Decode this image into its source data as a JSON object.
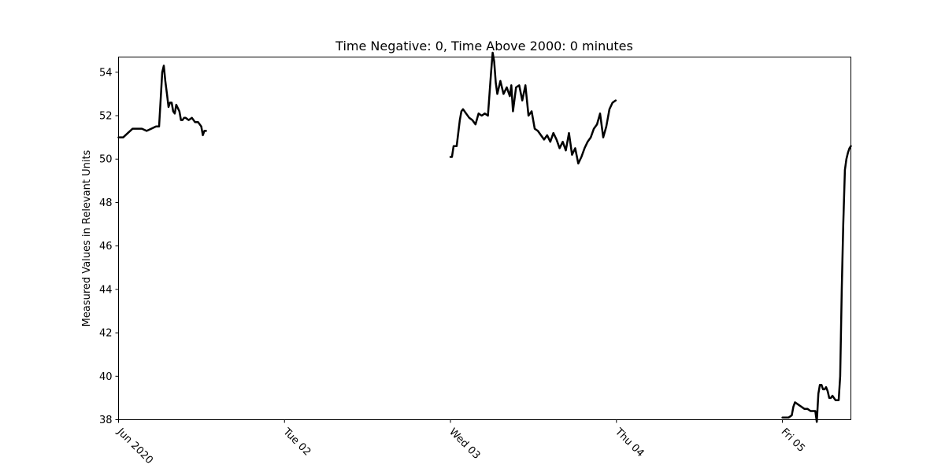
{
  "chart_data": {
    "type": "line",
    "title": "Time Negative: 0, Time Above 2000: 0 minutes",
    "xlabel": "",
    "ylabel": "Measured Values in Relevant Units",
    "ylim": [
      38,
      54.7
    ],
    "xlim": [
      "2020-06-01 00:00",
      "2020-06-05 09:54"
    ],
    "x_ticks": [
      {
        "date": "2020-06-01",
        "label": "Jun 2020"
      },
      {
        "date": "2020-06-02",
        "label": "Tue 02"
      },
      {
        "date": "2020-06-03",
        "label": "Wed 03"
      },
      {
        "date": "2020-06-04",
        "label": "Thu 04"
      },
      {
        "date": "2020-06-05",
        "label": "Fri 05"
      }
    ],
    "y_ticks": [
      38,
      40,
      42,
      44,
      46,
      48,
      50,
      52,
      54
    ],
    "grid": false,
    "line_color": "#000000",
    "segments": [
      {
        "x": [
          "2020-06-01 00:00",
          "2020-06-01 00:41",
          "2020-06-01 01:21",
          "2020-06-01 02:02",
          "2020-06-01 02:42",
          "2020-06-01 03:23",
          "2020-06-01 04:04",
          "2020-06-01 04:44",
          "2020-06-01 05:25",
          "2020-06-01 05:52",
          "2020-06-01 06:06",
          "2020-06-01 06:19",
          "2020-06-01 06:33",
          "2020-06-01 06:46",
          "2020-06-01 07:00",
          "2020-06-01 07:14",
          "2020-06-01 07:27",
          "2020-06-01 07:41",
          "2020-06-01 07:54",
          "2020-06-01 08:08",
          "2020-06-01 08:21",
          "2020-06-01 08:48",
          "2020-06-01 09:02",
          "2020-06-01 09:15",
          "2020-06-01 09:29",
          "2020-06-01 09:42",
          "2020-06-01 10:09",
          "2020-06-01 10:37",
          "2020-06-01 11:04",
          "2020-06-01 11:31",
          "2020-06-01 11:58",
          "2020-06-01 12:12",
          "2020-06-01 12:25",
          "2020-06-01 12:39"
        ],
        "y": [
          51.0,
          51.0,
          51.2,
          51.4,
          51.4,
          51.4,
          51.3,
          51.4,
          51.5,
          51.5,
          52.8,
          54.0,
          54.3,
          53.6,
          53.0,
          52.4,
          52.6,
          52.6,
          52.2,
          52.1,
          52.5,
          52.2,
          51.8,
          51.8,
          51.9,
          51.9,
          51.8,
          51.9,
          51.7,
          51.7,
          51.5,
          51.1,
          51.3,
          51.3
        ]
      },
      {
        "x": [
          "2020-06-03 00:00",
          "2020-06-03 00:13",
          "2020-06-03 00:27",
          "2020-06-03 00:54",
          "2020-06-03 01:21",
          "2020-06-03 01:35",
          "2020-06-03 01:49",
          "2020-06-03 02:16",
          "2020-06-03 02:43",
          "2020-06-03 03:10",
          "2020-06-03 03:37",
          "2020-06-03 04:04",
          "2020-06-03 04:31",
          "2020-06-03 04:58",
          "2020-06-03 05:25",
          "2020-06-03 05:52",
          "2020-06-03 06:06",
          "2020-06-03 06:19",
          "2020-06-03 06:33",
          "2020-06-03 06:46",
          "2020-06-03 07:13",
          "2020-06-03 07:40",
          "2020-06-03 08:08",
          "2020-06-03 08:35",
          "2020-06-03 08:48",
          "2020-06-03 09:02",
          "2020-06-03 09:29",
          "2020-06-03 09:56",
          "2020-06-03 10:23",
          "2020-06-03 10:50",
          "2020-06-03 11:17",
          "2020-06-03 11:44",
          "2020-06-03 12:11",
          "2020-06-03 12:38",
          "2020-06-03 13:05",
          "2020-06-03 13:32",
          "2020-06-03 13:59",
          "2020-06-03 14:26",
          "2020-06-03 14:53",
          "2020-06-03 15:20",
          "2020-06-03 15:47",
          "2020-06-03 16:14",
          "2020-06-03 16:41",
          "2020-06-03 17:08",
          "2020-06-03 17:35",
          "2020-06-03 18:02",
          "2020-06-03 18:29",
          "2020-06-03 18:56",
          "2020-06-03 19:23",
          "2020-06-03 19:50",
          "2020-06-03 20:17",
          "2020-06-03 20:44",
          "2020-06-03 21:11",
          "2020-06-03 21:38",
          "2020-06-03 22:05",
          "2020-06-03 22:32",
          "2020-06-03 22:59",
          "2020-06-03 23:26",
          "2020-06-03 23:53"
        ],
        "y": [
          50.1,
          50.1,
          50.6,
          50.6,
          51.8,
          52.2,
          52.3,
          52.1,
          51.9,
          51.8,
          51.6,
          52.1,
          52.0,
          52.1,
          52.0,
          54.0,
          54.9,
          54.5,
          53.5,
          53.0,
          53.6,
          53.0,
          53.3,
          52.9,
          53.4,
          52.2,
          53.3,
          53.4,
          52.7,
          53.4,
          52.0,
          52.2,
          51.4,
          51.3,
          51.1,
          50.9,
          51.1,
          50.8,
          51.2,
          50.9,
          50.5,
          50.8,
          50.4,
          51.2,
          50.2,
          50.5,
          49.8,
          50.1,
          50.5,
          50.8,
          51.0,
          51.4,
          51.6,
          52.1,
          51.0,
          51.5,
          52.3,
          52.6,
          52.7
        ]
      },
      {
        "x": [
          "2020-06-05 00:00",
          "2020-06-05 00:27",
          "2020-06-05 00:54",
          "2020-06-05 01:21",
          "2020-06-05 01:35",
          "2020-06-05 01:49",
          "2020-06-05 02:16",
          "2020-06-05 02:43",
          "2020-06-05 03:10",
          "2020-06-05 03:37",
          "2020-06-05 04:04",
          "2020-06-05 04:18",
          "2020-06-05 04:31",
          "2020-06-05 04:45",
          "2020-06-05 04:58",
          "2020-06-05 05:12",
          "2020-06-05 05:25",
          "2020-06-05 05:39",
          "2020-06-05 05:52",
          "2020-06-05 06:06",
          "2020-06-05 06:19",
          "2020-06-05 06:33",
          "2020-06-05 06:46",
          "2020-06-05 07:00",
          "2020-06-05 07:14",
          "2020-06-05 07:27",
          "2020-06-05 07:41",
          "2020-06-05 07:54",
          "2020-06-05 08:08",
          "2020-06-05 08:21",
          "2020-06-05 08:35",
          "2020-06-05 08:48",
          "2020-06-05 09:02",
          "2020-06-05 09:15",
          "2020-06-05 09:29",
          "2020-06-05 09:42",
          "2020-06-05 09:54"
        ],
        "y": [
          38.1,
          38.1,
          38.1,
          38.2,
          38.6,
          38.8,
          38.7,
          38.6,
          38.5,
          38.5,
          38.4,
          38.4,
          38.4,
          38.4,
          37.9,
          39.2,
          39.6,
          39.6,
          39.4,
          39.4,
          39.5,
          39.3,
          39.0,
          39.0,
          39.1,
          39.0,
          38.9,
          38.9,
          38.9,
          40.0,
          44.0,
          47.0,
          49.5,
          50.0,
          50.3,
          50.5,
          50.6
        ]
      }
    ]
  }
}
